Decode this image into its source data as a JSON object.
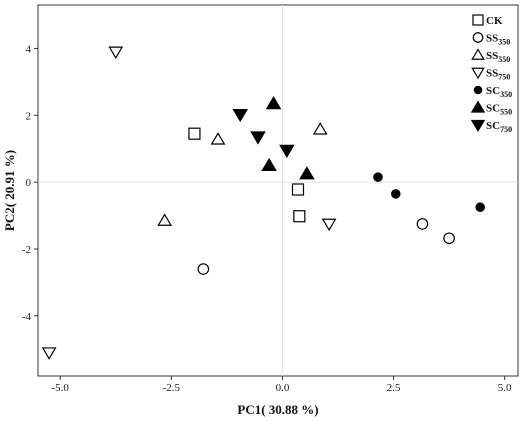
{
  "chart_data": {
    "type": "scatter",
    "title": "",
    "xlabel": "PC1( 30.88 %)",
    "ylabel": "PC2( 20.91 %)",
    "xlim": [
      -5.5,
      5.3
    ],
    "ylim": [
      -5.8,
      5.3
    ],
    "xticks": [
      -5.0,
      -2.5,
      0.0,
      2.5,
      5.0
    ],
    "xtick_labels": [
      "-5.0",
      "-2.5",
      "0.0",
      "2.5",
      "5.0"
    ],
    "yticks": [
      -4,
      -2,
      0,
      2,
      4
    ],
    "ytick_labels": [
      "-4",
      "-2",
      "0",
      "2",
      "4"
    ],
    "zero_lines": true,
    "legend_position": "top-right",
    "series": [
      {
        "name": "CK",
        "name_main": "CK",
        "name_sub": "",
        "marker": "square-open",
        "points": [
          [
            -1.98,
            1.45
          ],
          [
            0.35,
            -0.22
          ],
          [
            0.38,
            -1.02
          ]
        ]
      },
      {
        "name": "SS350",
        "name_main": "SS",
        "name_sub": "350",
        "marker": "circle-open",
        "points": [
          [
            -1.78,
            -2.6
          ],
          [
            3.15,
            -1.25
          ],
          [
            3.75,
            -1.68
          ]
        ]
      },
      {
        "name": "SS550",
        "name_main": "SS",
        "name_sub": "550",
        "marker": "triangle-up-open",
        "points": [
          [
            -2.65,
            -1.15
          ],
          [
            -1.45,
            1.28
          ],
          [
            0.85,
            1.58
          ]
        ]
      },
      {
        "name": "SS750",
        "name_main": "SS",
        "name_sub": "750",
        "marker": "triangle-down-open",
        "points": [
          [
            -3.75,
            3.9
          ],
          [
            -5.25,
            -5.1
          ],
          [
            1.05,
            -1.25
          ]
        ]
      },
      {
        "name": "SC350",
        "name_main": "SC",
        "name_sub": "350",
        "marker": "circle-filled",
        "points": [
          [
            2.15,
            0.15
          ],
          [
            2.55,
            -0.35
          ],
          [
            4.45,
            -0.75
          ]
        ]
      },
      {
        "name": "SC550",
        "name_main": "SC",
        "name_sub": "550",
        "marker": "triangle-up-filled",
        "points": [
          [
            -0.2,
            2.35
          ],
          [
            -0.3,
            0.5
          ],
          [
            0.55,
            0.25
          ]
        ]
      },
      {
        "name": "SC750",
        "name_main": "SC",
        "name_sub": "750",
        "marker": "triangle-down-filled",
        "points": [
          [
            -0.95,
            2.02
          ],
          [
            -0.55,
            1.35
          ],
          [
            0.1,
            0.95
          ]
        ]
      }
    ]
  }
}
